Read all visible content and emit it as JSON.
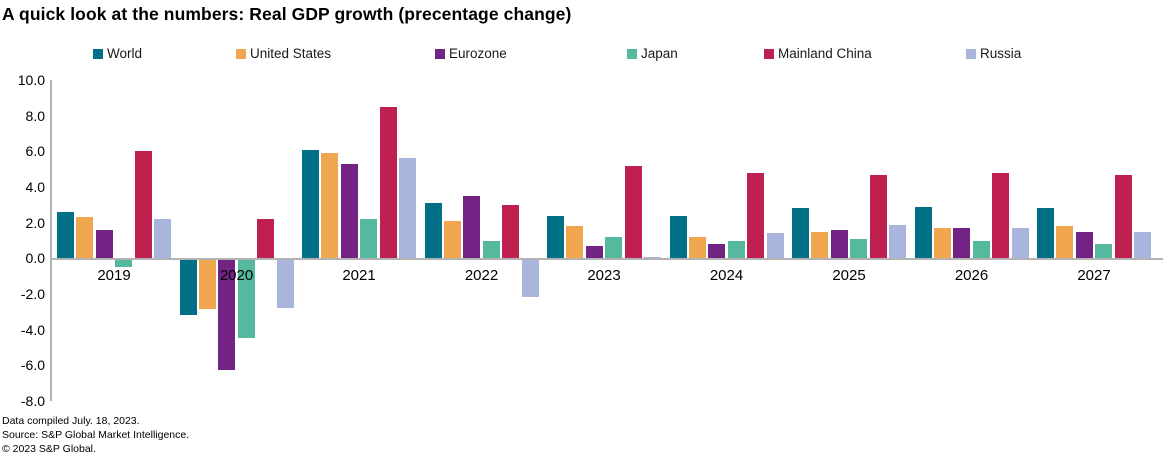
{
  "title": "A quick look at the numbers: Real GDP growth (precentage change)",
  "footer": {
    "line1": "Data compiled July. 18, 2023.",
    "line2": "Source: S&P Global Market Intelligence.",
    "line3": "© 2023 S&P Global."
  },
  "chart_data": {
    "type": "bar",
    "title": "A quick look at the numbers: Real GDP growth (precentage change)",
    "categories": [
      "2019",
      "2020",
      "2021",
      "2022",
      "2023",
      "2024",
      "2025",
      "2026",
      "2027"
    ],
    "series": [
      {
        "name": "World",
        "color": "#016f85",
        "values": [
          2.6,
          -3.1,
          6.1,
          3.1,
          2.4,
          2.4,
          2.8,
          2.9,
          2.8
        ]
      },
      {
        "name": "United States",
        "color": "#f0a64e",
        "values": [
          2.3,
          -2.8,
          5.9,
          2.1,
          1.8,
          1.2,
          1.5,
          1.7,
          1.8
        ]
      },
      {
        "name": "Eurozone",
        "color": "#722384",
        "values": [
          1.6,
          -6.2,
          5.3,
          3.5,
          0.7,
          0.8,
          1.6,
          1.7,
          1.5
        ]
      },
      {
        "name": "Japan",
        "color": "#55b9a0",
        "values": [
          -0.4,
          -4.4,
          2.2,
          1.0,
          1.2,
          1.0,
          1.1,
          1.0,
          0.8
        ]
      },
      {
        "name": "Mainland China",
        "color": "#be2050",
        "values": [
          6.0,
          2.2,
          8.5,
          3.0,
          5.2,
          4.8,
          4.7,
          4.8,
          4.7
        ]
      },
      {
        "name": "Russia",
        "color": "#aab5de",
        "values": [
          2.2,
          -2.7,
          5.6,
          -2.1,
          0.1,
          1.4,
          1.9,
          1.7,
          1.5
        ]
      }
    ],
    "xlabel": "",
    "ylabel": "",
    "ylim": [
      -8.0,
      10.0
    ],
    "ytick_step": 2.0,
    "ytick_labels": [
      "10.0",
      "8.0",
      "6.0",
      "4.0",
      "2.0",
      "0.0",
      "-2.0",
      "-4.0",
      "-6.0",
      "-8.0"
    ],
    "grid": false,
    "legend_position": "top",
    "axis_color": "#b3b3b3"
  }
}
